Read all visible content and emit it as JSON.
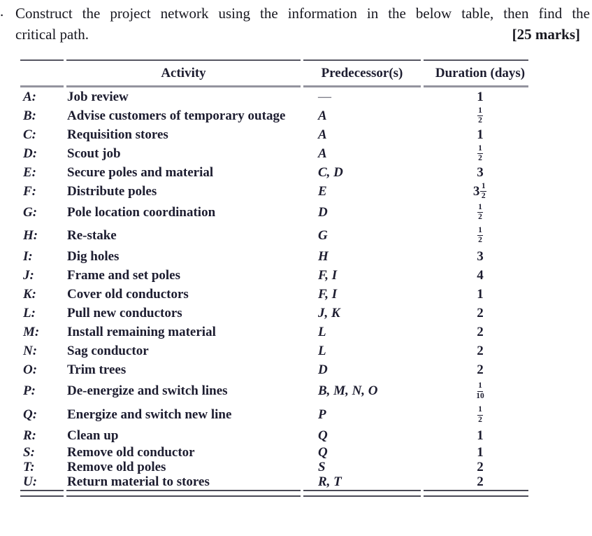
{
  "question": {
    "number_prefix": ".",
    "line1": "Construct the project network using the information in the below table, then find the",
    "line2": "critical path.",
    "marks": "[25 marks]"
  },
  "table": {
    "headers": {
      "activity": "Activity",
      "predecessors": "Predecessor(s)",
      "duration": "Duration (days)"
    },
    "rows": [
      {
        "label": "A:",
        "activity": "Job review",
        "predecessors": "—",
        "duration": "1"
      },
      {
        "label": "B:",
        "activity": "Advise customers of temporary outage",
        "predecessors": "A",
        "duration": "1/2"
      },
      {
        "label": "C:",
        "activity": "Requisition stores",
        "predecessors": "A",
        "duration": "1"
      },
      {
        "label": "D:",
        "activity": "Scout job",
        "predecessors": "A",
        "duration": "1/2"
      },
      {
        "label": "E:",
        "activity": "Secure poles and material",
        "predecessors": "C, D",
        "duration": "3"
      },
      {
        "label": "F:",
        "activity": "Distribute poles",
        "predecessors": "E",
        "duration": "3 1/2"
      },
      {
        "label": "G:",
        "activity": "Pole location coordination",
        "predecessors": "D",
        "duration": "1/2"
      },
      {
        "label": "H:",
        "activity": "Re-stake",
        "predecessors": "G",
        "duration": "1/2"
      },
      {
        "label": "I:",
        "activity": "Dig holes",
        "predecessors": "H",
        "duration": "3"
      },
      {
        "label": "J:",
        "activity": "Frame and set poles",
        "predecessors": "F, I",
        "duration": "4"
      },
      {
        "label": "K:",
        "activity": "Cover old conductors",
        "predecessors": "F, I",
        "duration": "1"
      },
      {
        "label": "L:",
        "activity": "Pull new conductors",
        "predecessors": "J, K",
        "duration": "2"
      },
      {
        "label": "M:",
        "activity": "Install remaining material",
        "predecessors": "L",
        "duration": "2"
      },
      {
        "label": "N:",
        "activity": "Sag conductor",
        "predecessors": "L",
        "duration": "2"
      },
      {
        "label": "O:",
        "activity": "Trim trees",
        "predecessors": "D",
        "duration": "2"
      },
      {
        "label": "P:",
        "activity": "De-energize and switch lines",
        "predecessors": "B, M, N, O",
        "duration": "1/10"
      },
      {
        "label": "Q:",
        "activity": "Energize and switch new line",
        "predecessors": "P",
        "duration": "1/2"
      },
      {
        "label": "R:",
        "activity": "Clean up",
        "predecessors": "Q",
        "duration": "1"
      },
      {
        "label": "S:",
        "activity": "Remove old conductor",
        "predecessors": "Q",
        "duration": "1"
      },
      {
        "label": "T:",
        "activity": "Remove old poles",
        "predecessors": "S",
        "duration": "2"
      },
      {
        "label": "U:",
        "activity": "Return material to stores",
        "predecessors": "R, T",
        "duration": "2"
      }
    ]
  }
}
